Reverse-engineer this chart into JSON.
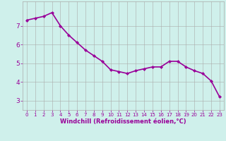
{
  "x": [
    0,
    1,
    2,
    3,
    4,
    5,
    6,
    7,
    8,
    9,
    10,
    11,
    12,
    13,
    14,
    15,
    16,
    17,
    18,
    19,
    20,
    21,
    22,
    23
  ],
  "y": [
    7.3,
    7.4,
    7.5,
    7.7,
    7.0,
    6.5,
    6.1,
    5.7,
    5.4,
    5.1,
    4.65,
    4.55,
    4.45,
    4.6,
    4.7,
    4.8,
    4.8,
    5.1,
    5.1,
    4.8,
    4.6,
    4.45,
    4.05,
    3.2
  ],
  "line_color": "#990099",
  "marker": "D",
  "marker_size": 2.0,
  "bg_color": "#cff0eb",
  "grid_color": "#aaaaaa",
  "xlabel": "Windchill (Refroidissement éolien,°C)",
  "xlabel_color": "#990099",
  "tick_color": "#990099",
  "ylim": [
    2.5,
    8.3
  ],
  "xlim": [
    -0.5,
    23.5
  ],
  "yticks": [
    3,
    4,
    5,
    6,
    7
  ],
  "xticks": [
    0,
    1,
    2,
    3,
    4,
    5,
    6,
    7,
    8,
    9,
    10,
    11,
    12,
    13,
    14,
    15,
    16,
    17,
    18,
    19,
    20,
    21,
    22,
    23
  ],
  "linewidth": 1.2,
  "xtick_fontsize": 5.0,
  "ytick_fontsize": 6.5,
  "xlabel_fontsize": 6.0
}
